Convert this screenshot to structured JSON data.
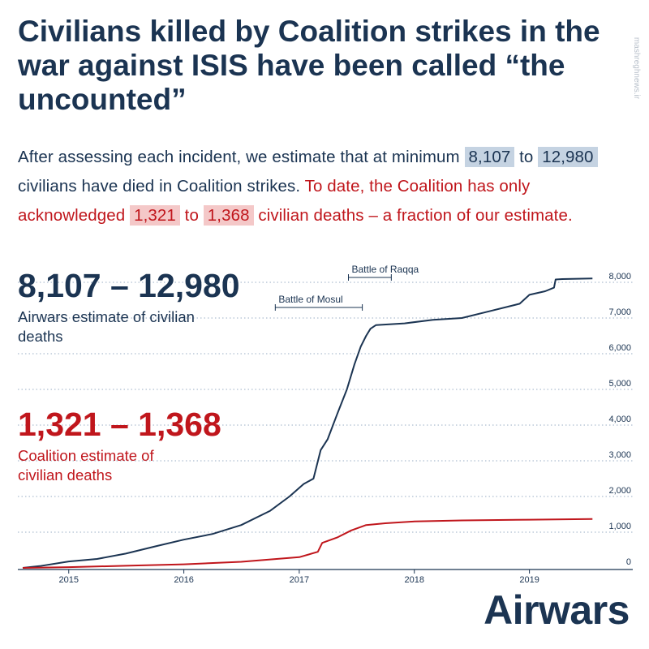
{
  "title": "Civilians killed by Coalition strikes in the war against ISIS have been called “the uncounted”",
  "intro": {
    "part1": "After assessing each incident, we estimate that at minimum ",
    "min": "8,107",
    "part2": " to ",
    "max": "12,980",
    "part3": " civilians have died in Coalition strikes. ",
    "red1": "To date, the Coalition has only acknowledged ",
    "ack_min": "1,321",
    "red2": " to ",
    "ack_max": "1,368",
    "red3": " civilian deaths – a fraction of our estimate."
  },
  "airwars_estimate": {
    "value": "8,107 – 12,980",
    "label": "Airwars estimate of civilian deaths"
  },
  "coalition_estimate": {
    "value": "1,321 – 1,368",
    "label": "Coalition estimate of civilian deaths"
  },
  "brand": "Airwars",
  "watermark": "mashreghnews.ir",
  "colors": {
    "airwars": "#1b3452",
    "coalition": "#c0161c",
    "highlight_blue": "#c5d3e2",
    "highlight_red": "#f4c8c8"
  },
  "chart_data": {
    "type": "line",
    "x_range": [
      "2014-08-08",
      "2019-08-01"
    ],
    "y_range": [
      0,
      8000
    ],
    "y_ticks": [
      "0",
      "1,000",
      "2,000",
      "3,000",
      "4,000",
      "5,000",
      "6,000",
      "7,000",
      "8,000"
    ],
    "x_ticks": [
      "2015",
      "2016",
      "2017",
      "2018",
      "2019"
    ],
    "grid": true,
    "annotations": [
      {
        "label": "Battle of Mosul",
        "start": "2016-10-17",
        "end": "2017-07-20"
      },
      {
        "label": "Battle of Raqqa",
        "start": "2017-06-06",
        "end": "2017-10-20"
      }
    ],
    "series": [
      {
        "values": [
          [
            "2014-08-08",
            0
          ],
          [
            "2014-10-01",
            50
          ],
          [
            "2015-01-01",
            180
          ],
          [
            "2015-04-01",
            250
          ],
          [
            "2015-07-01",
            400
          ],
          [
            "2015-10-01",
            600
          ],
          [
            "2016-01-01",
            790
          ],
          [
            "2016-04-01",
            950
          ],
          [
            "2016-07-01",
            1200
          ],
          [
            "2016-10-01",
            1600
          ],
          [
            "2016-12-01",
            2000
          ],
          [
            "2017-01-15",
            2350
          ],
          [
            "2017-02-15",
            2500
          ],
          [
            "2017-03-10",
            3300
          ],
          [
            "2017-04-01",
            3600
          ],
          [
            "2017-05-01",
            4300
          ],
          [
            "2017-06-01",
            5000
          ],
          [
            "2017-06-25",
            5700
          ],
          [
            "2017-07-15",
            6200
          ],
          [
            "2017-08-01",
            6500
          ],
          [
            "2017-08-15",
            6700
          ],
          [
            "2017-09-01",
            6800
          ],
          [
            "2017-12-01",
            6850
          ],
          [
            "2018-03-01",
            6950
          ],
          [
            "2018-06-01",
            7000
          ],
          [
            "2018-09-01",
            7200
          ],
          [
            "2018-12-01",
            7400
          ],
          [
            "2019-01-01",
            7650
          ],
          [
            "2019-02-20",
            7750
          ],
          [
            "2019-03-20",
            7850
          ],
          [
            "2019-03-25",
            8080
          ],
          [
            "2019-04-15",
            8090
          ],
          [
            "2019-07-20",
            8107
          ]
        ]
      },
      {
        "values": [
          [
            "2014-08-08",
            0
          ],
          [
            "2015-01-01",
            20
          ],
          [
            "2015-07-01",
            60
          ],
          [
            "2016-01-01",
            100
          ],
          [
            "2016-07-01",
            170
          ],
          [
            "2017-01-01",
            300
          ],
          [
            "2017-03-01",
            450
          ],
          [
            "2017-03-15",
            700
          ],
          [
            "2017-05-01",
            850
          ],
          [
            "2017-06-15",
            1050
          ],
          [
            "2017-08-01",
            1200
          ],
          [
            "2017-10-01",
            1250
          ],
          [
            "2018-01-01",
            1300
          ],
          [
            "2018-06-01",
            1330
          ],
          [
            "2019-01-01",
            1350
          ],
          [
            "2019-07-20",
            1368
          ]
        ]
      }
    ]
  }
}
